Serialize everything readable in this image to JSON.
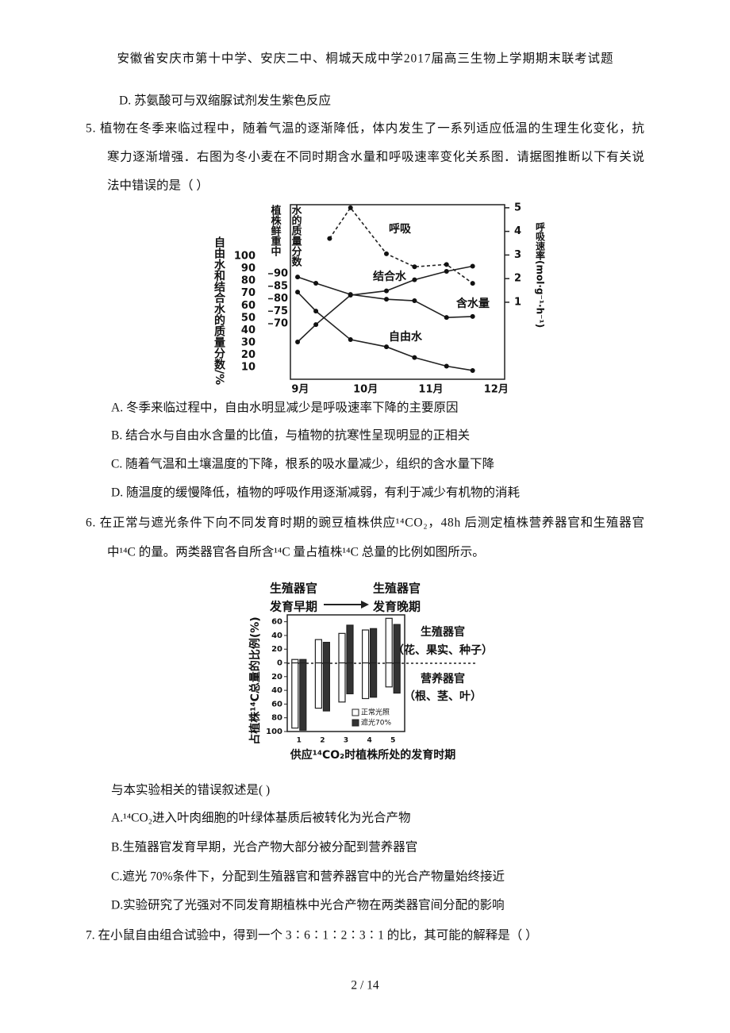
{
  "header": "安徽省安庆市第十中学、安庆二中、桐城天成中学2017届高三生物上学期期末联考试题",
  "q4_option_d": "D.  苏氨酸可与双缩脲试剂发生紫色反应",
  "q5": {
    "stem": [
      "5.  植物在冬季来临过程中，随着气温的逐渐降低，体内发生了一系列适应低温的生理生化变化，抗",
      "寒力逐渐增强．右图为冬小麦在不同时期含水量和呼吸速率变化关系图．请据图推断以下有关说",
      "法中错误的是（    ）"
    ],
    "figure": {
      "type": "line",
      "y_label": "自由水和结合水的质量分数/%",
      "y_mid_label": [
        "植株鲜重中",
        "水的质量分数"
      ],
      "y2_label": "呼吸速率(mol·g⁻¹·h⁻¹)",
      "xlim": [
        8.85,
        12.13
      ],
      "xticks": [
        {
          "value": 9,
          "label": "9月"
        },
        {
          "value": 10,
          "label": "10月"
        },
        {
          "value": 11,
          "label": "11月"
        },
        {
          "value": 12,
          "label": "12月"
        }
      ],
      "ylim": [
        0.4,
        141.8
      ],
      "yticks": [
        10,
        20,
        30,
        40,
        50,
        60,
        70,
        80,
        90,
        100
      ],
      "y_mid_lim": [
        47.8,
        117.6
      ],
      "y_mid_ticks": [
        70,
        75,
        80,
        85,
        90
      ],
      "y2lim": [
        -2.26,
        5.13
      ],
      "y2ticks": [
        1,
        2,
        3,
        4,
        5
      ],
      "series": [
        {
          "name": "呼吸",
          "axis": "y2",
          "dashed": true,
          "x": [
            9.45,
            9.77,
            10.32,
            10.75,
            11.24,
            11.64
          ],
          "values": [
            3.7,
            5,
            3.05,
            2.5,
            2.6,
            1.8
          ]
        },
        {
          "name": "结合水",
          "axis": "y",
          "x": [
            8.96,
            9.24,
            9.77,
            10.32,
            10.75,
            11.24,
            11.64
          ],
          "values": [
            30.6,
            44.7,
            68.5,
            72,
            81,
            87.8,
            92
          ]
        },
        {
          "name": "含水量",
          "axis": "y_mid",
          "x": [
            8.96,
            9.24,
            9.77,
            10.32,
            10.75,
            11.24,
            11.64
          ],
          "values": [
            88.7,
            86.2,
            81.7,
            79.8,
            79.2,
            72.5,
            72.9
          ]
        },
        {
          "name": "自由水",
          "axis": "y",
          "x": [
            8.96,
            9.24,
            9.77,
            10.32,
            10.75,
            11.24,
            11.64
          ],
          "values": [
            71,
            55.6,
            32.5,
            26.7,
            18,
            11,
            7.5
          ]
        }
      ]
    },
    "options": [
      "A.  冬季来临过程中，自由水明显减少是呼吸速率下降的主要原因",
      "B.  结合水与自由水含量的比值，与植物的抗寒性呈现明显的正相关",
      "C.  随着气温和土壤温度的下降，根系的吸水量减少，组织的含水量下降",
      "D.  随温度的缓慢降低，植物的呼吸作用逐渐减弱，有利于减少有机物的消耗"
    ]
  },
  "q6": {
    "stem": [
      "6. 在正常与遮光条件下向不同发育时期的豌豆植株供应¹⁴CO₂，48h 后测定植株营养器官和生殖器官",
      "中¹⁴C 的量。两类器官各自所含¹⁴C 量占植株¹⁴C 总量的比例如图所示。"
    ],
    "figure": {
      "type": "bar",
      "y_label": "占植株¹⁴C总量的比例(%)",
      "x_label": "供应¹⁴CO₂时植株所处的发育时期",
      "annotations": {
        "early": [
          "生殖器官",
          "发育早期"
        ],
        "late": [
          "生殖器官",
          "发育晚期"
        ],
        "reproductive": [
          "生殖器官",
          "（花、果实、种子）"
        ],
        "vegetative": [
          "营养器官",
          "（根、茎、叶）"
        ]
      },
      "categories": [
        "1",
        "2",
        "3",
        "4",
        "5"
      ],
      "ylim": [
        -100,
        70
      ],
      "yticks": [
        60,
        40,
        20,
        0,
        {
          "value": -20,
          "label": "20"
        },
        {
          "value": -40,
          "label": "40"
        },
        {
          "value": -60,
          "label": "60"
        },
        {
          "value": -80,
          "label": "80"
        },
        {
          "value": -100,
          "label": "100"
        }
      ],
      "series": [
        {
          "name": "正常光照",
          "color": "#ffffff",
          "reproductive": [
            5,
            34,
            43,
            48,
            65
          ],
          "vegetative": [
            -95,
            -66,
            -57,
            -52,
            -35
          ]
        },
        {
          "name": "遮光70%",
          "color": "#333333",
          "reproductive": [
            5,
            30,
            55,
            50,
            56
          ],
          "vegetative": [
            -98,
            -70,
            -45,
            -50,
            -44
          ]
        }
      ]
    },
    "prompt": "与本实验相关的错误叙述是(  )",
    "options": [
      "A.¹⁴CO₂进入叶肉细胞的叶绿体基质后被转化为光合产物",
      "B.生殖器官发育早期，光合产物大部分被分配到营养器官",
      "C.遮光 70%条件下，分配到生殖器官和营养器官中的光合产物量始终接近",
      "D.实验研究了光强对不同发育期植株中光合产物在两类器官间分配的影响"
    ]
  },
  "q7": {
    "stem": [
      "7.  在小鼠自由组合试验中，得到一个 3∶6∶1∶2∶3∶1 的比，其可能的解释是（    ）"
    ]
  },
  "footer": "2 / 14"
}
